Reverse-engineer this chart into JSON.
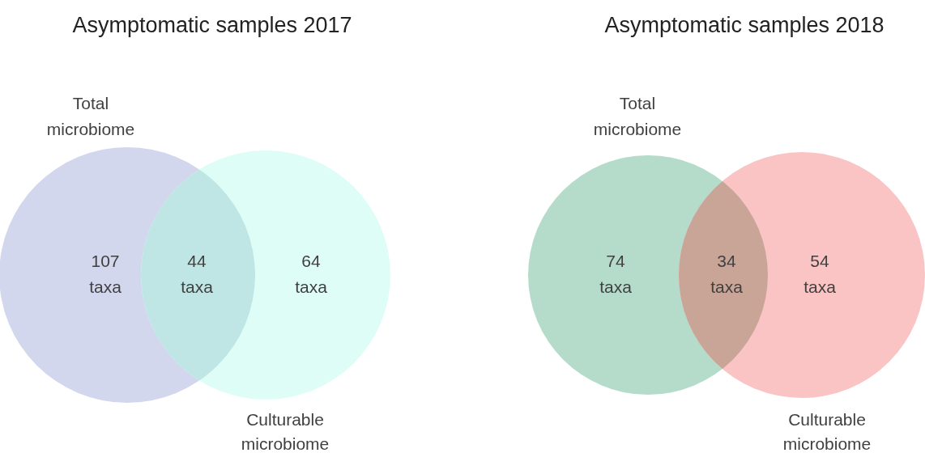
{
  "chart_data": [
    {
      "type": "other",
      "title": "Asymptomatic samples 2017",
      "categories": [
        "Total microbiome",
        null,
        "Culturable microbiome"
      ],
      "values": [
        107,
        44,
        64
      ],
      "value_labels": [
        "107 taxa",
        "44 taxa",
        "64 taxa"
      ],
      "colors": [
        "#d3d7ee",
        "#bfe6e4",
        "#dffdf7"
      ]
    },
    {
      "type": "other",
      "title": "Asymptomatic samples 2018",
      "categories": [
        "Total microbiome",
        null,
        "Culturable microbiome"
      ],
      "values": [
        74,
        34,
        54
      ],
      "value_labels": [
        "74 taxa",
        "34 taxa",
        "54 taxa"
      ],
      "colors": [
        "#b5dccb",
        "#c9a598",
        "#fbc4c4"
      ]
    }
  ]
}
